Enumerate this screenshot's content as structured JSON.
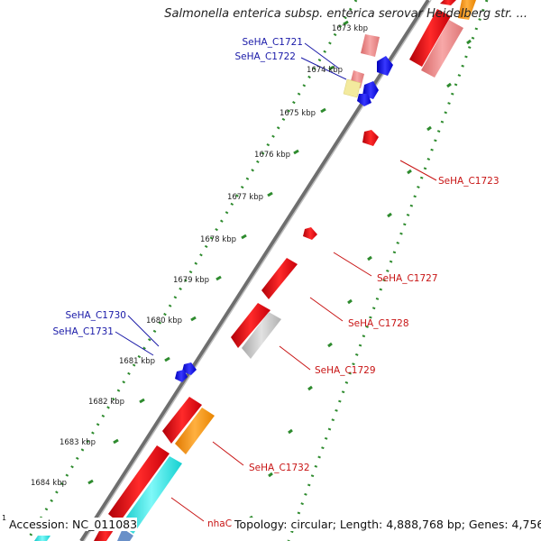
{
  "title": "Salmonella enterica subsp. enterica serovar Heidelberg str. ...",
  "footer": {
    "accession": "Accession: NC_011083",
    "summary": "Topology: circular; Length: 4,888,768 bp; Genes: 4,756",
    "corner": "1"
  },
  "colors": {
    "backbone": "#7f7f7f",
    "tick_dots": "#2e8b2e",
    "cds_red": "#e8141e",
    "cds_pink": "#ef8c8c",
    "cds_blue": "#1515e8",
    "cds_yellow": "#f2e89a",
    "cds_orange": "#f7911c",
    "cds_cyan": "#22e8e8",
    "cds_gray": "#c0c0c0",
    "label_blue": "#1a1aa8",
    "label_red": "#c81414"
  },
  "scale_labels": [
    "1673 kbp",
    "1674 kbp",
    "1675 kbp",
    "1676 kbp",
    "1677 kbp",
    "1678 kbp",
    "1679 kbp",
    "1680 kbp",
    "1681 kbp",
    "1682 kbp",
    "1683 kbp",
    "1684 kbp"
  ],
  "gene_labels": {
    "left": [
      "SeHA_C1721",
      "SeHA_C1722",
      "SeHA_C1730",
      "SeHA_C1731"
    ],
    "right": [
      "SeHA_C1723",
      "SeHA_C1727",
      "SeHA_C1728",
      "SeHA_C1729",
      "SeHA_C1732",
      "nhaC"
    ]
  }
}
